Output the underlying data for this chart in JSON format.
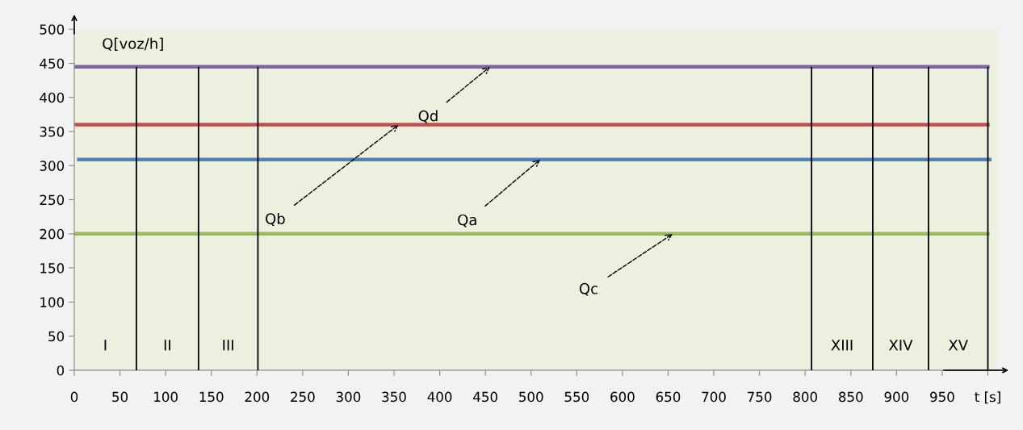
{
  "chart_data": {
    "type": "line",
    "ylabel": "Q[voz/h]",
    "xlim": [
      0,
      1010
    ],
    "ylim": [
      0,
      500
    ],
    "xticks": [
      0,
      50,
      100,
      150,
      200,
      250,
      300,
      350,
      400,
      450,
      500,
      550,
      600,
      650,
      700,
      750,
      800,
      850,
      900,
      950,
      {
        "value": 1000,
        "label": "t [s]"
      }
    ],
    "yticks": [
      0,
      50,
      100,
      150,
      200,
      250,
      300,
      350,
      400,
      450,
      500
    ],
    "series": [
      {
        "color": "#8064a2",
        "x": [
          0,
          1000
        ],
        "values": [
          445,
          445
        ]
      },
      {
        "color": "#c0504d",
        "x": [
          0,
          1000
        ],
        "values": [
          360,
          360
        ]
      },
      {
        "color": "#4f81bd",
        "x": [
          5,
          1002
        ],
        "values": [
          309,
          309
        ]
      },
      {
        "color": "#9bbb59",
        "x": [
          0,
          1000
        ],
        "values": [
          200,
          200
        ]
      }
    ],
    "ref_lines": [
      {
        "axis": "x",
        "value": 68,
        "color": "#000000",
        "label": "I"
      },
      {
        "axis": "x",
        "value": 136,
        "color": "#000000",
        "label": "II"
      },
      {
        "axis": "x",
        "value": 201,
        "color": "#000000",
        "label": "III"
      },
      {
        "axis": "x",
        "value": 807,
        "color": "#000000"
      },
      {
        "axis": "x",
        "value": 874,
        "color": "#000000",
        "label": "XIII"
      },
      {
        "axis": "x",
        "value": 935,
        "color": "#000000",
        "label": "XIV"
      },
      {
        "axis": "x",
        "value": 1000,
        "color": "#000000",
        "label": "XV"
      }
    ],
    "annotations": [
      {
        "text": "Qd",
        "x": 455,
        "y": 445
      },
      {
        "text": "Qb",
        "x": 355,
        "y": 360
      },
      {
        "text": "Qa",
        "x": 510,
        "y": 309
      },
      {
        "text": "Qc",
        "x": 655,
        "y": 200
      }
    ],
    "grid": false,
    "legend": false,
    "marker": "none",
    "line_style": "solid"
  }
}
